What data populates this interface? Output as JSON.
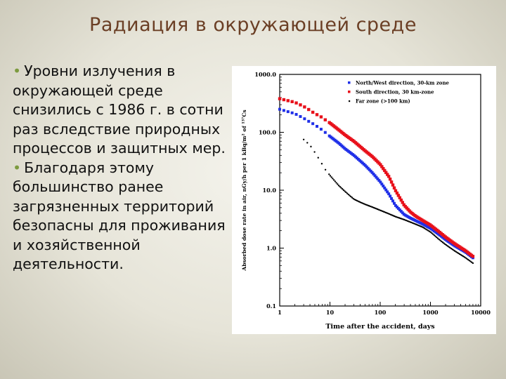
{
  "slide": {
    "title": "Радиация в окружающей среде",
    "bullets": [
      "Уровни излучения в окружающей среде снизились с 1986 г. в сотни раз вследствие природных процессов и защитных мер.",
      "Благодаря этому большинство ранее загрязненных территорий безопасны для проживания и хозяйственной деятельности."
    ],
    "bullet_symbol": "•"
  },
  "colors": {
    "title": "#6b3f25",
    "bullet": "#7d9b3f",
    "series_north_west": "#1f2fe8",
    "series_south": "#e8101a",
    "series_far": "#000000"
  },
  "chart_data": {
    "type": "scatter",
    "xscale": "log",
    "yscale": "log",
    "xlim": [
      1,
      10000
    ],
    "ylim": [
      0.1,
      1000
    ],
    "xlabel": "Time after the accident, days",
    "ylabel": "Absorbed dose rate in air, nGy/h per 1 kBq/m² of ¹³⁷Cs",
    "xticks": [
      "1",
      "10",
      "100",
      "1000",
      "10000"
    ],
    "yticks": [
      "0.1",
      "1.0",
      "10.0",
      "100.0",
      "1000.0"
    ],
    "legend_position": "top-right",
    "grid": false,
    "series": [
      {
        "name": "North/West direction, 30-km zone",
        "color": "#1f2fe8",
        "x": [
          1,
          2,
          3,
          4,
          5,
          6,
          7,
          8,
          10,
          15,
          20,
          30,
          50,
          70,
          100,
          150,
          200,
          300,
          400,
          500,
          700,
          1000,
          1500,
          2000,
          3000,
          5000,
          7000
        ],
        "y": [
          250,
          210,
          175,
          150,
          135,
          120,
          110,
          100,
          85,
          65,
          52,
          40,
          27,
          20,
          14,
          8.5,
          5.5,
          3.8,
          3.3,
          3.0,
          2.6,
          2.2,
          1.7,
          1.4,
          1.1,
          0.85,
          0.68
        ]
      },
      {
        "name": "South direction, 30 km-zone",
        "color": "#e8101a",
        "x": [
          1,
          2,
          3,
          4,
          5,
          6,
          7,
          8,
          10,
          15,
          20,
          30,
          50,
          70,
          100,
          150,
          200,
          300,
          400,
          500,
          700,
          1000,
          1500,
          2000,
          3000,
          5000,
          7000
        ],
        "y": [
          380,
          330,
          280,
          240,
          210,
          195,
          180,
          165,
          145,
          110,
          90,
          70,
          48,
          38,
          28,
          17,
          10,
          5.5,
          4.2,
          3.6,
          3.0,
          2.5,
          1.9,
          1.55,
          1.2,
          0.9,
          0.72
        ]
      },
      {
        "name": "Far zone (>100 km)",
        "color": "#000000",
        "x": [
          3,
          4,
          5,
          6,
          7,
          8,
          10,
          12,
          15,
          20,
          25,
          30,
          40,
          50,
          70,
          100,
          150,
          200,
          300,
          500,
          700,
          1000,
          1500,
          2000,
          3000,
          5000,
          7000
        ],
        "y": [
          75,
          60,
          45,
          35,
          28,
          23,
          18,
          15,
          12,
          9.5,
          8.0,
          7.0,
          6.2,
          5.7,
          5.1,
          4.5,
          3.9,
          3.5,
          3.1,
          2.6,
          2.3,
          1.9,
          1.4,
          1.15,
          0.9,
          0.68,
          0.55
        ]
      }
    ]
  }
}
